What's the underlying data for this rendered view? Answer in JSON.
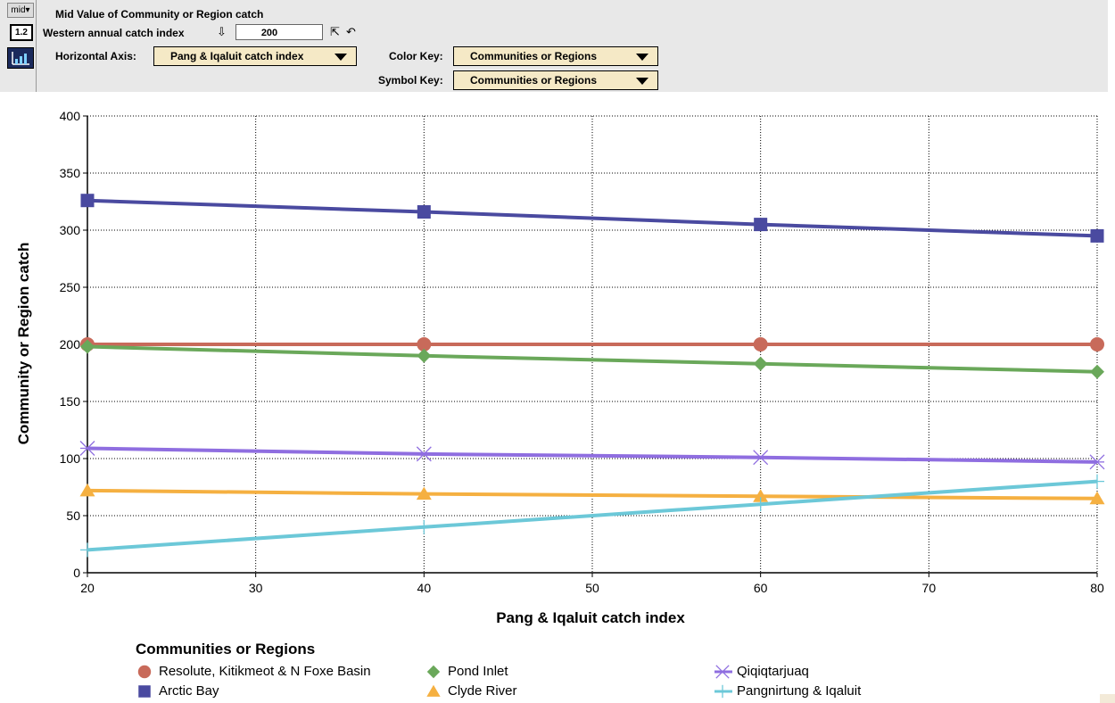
{
  "toolbar": {
    "mid_button": "mid",
    "number_button": "1.2",
    "title": "Mid Value of Community or Region catch",
    "input_label": "Western annual catch index",
    "input_value": "200",
    "horizontal_axis_label": "Horizontal Axis:",
    "horizontal_axis_value": "Pang & Iqaluit catch index",
    "color_key_label": "Color Key:",
    "color_key_value": "Communities or Regions",
    "symbol_key_label": "Symbol Key:",
    "symbol_key_value": "Communities or Regions"
  },
  "chart_data": {
    "type": "line",
    "xlabel": "Pang & Iqaluit catch index",
    "ylabel": "Community or Region catch",
    "xlim": [
      20,
      80
    ],
    "ylim": [
      0,
      400
    ],
    "x_ticks": [
      20,
      30,
      40,
      50,
      60,
      70,
      80
    ],
    "y_ticks": [
      0,
      50,
      100,
      150,
      200,
      250,
      300,
      350,
      400
    ],
    "grid": true,
    "legend_title": "Communities or Regions",
    "legend_position": "bottom",
    "series": [
      {
        "name": "Resolute, Kitikmeot & N Foxe Basin",
        "color": "#c86a5a",
        "marker": "circle",
        "x": [
          20,
          40,
          60,
          80
        ],
        "values": [
          200,
          200,
          200,
          200
        ]
      },
      {
        "name": "Arctic Bay",
        "color": "#4a4aa0",
        "marker": "square",
        "x": [
          20,
          40,
          60,
          80
        ],
        "values": [
          326,
          316,
          305,
          295
        ]
      },
      {
        "name": "Pond Inlet",
        "color": "#6aa85a",
        "marker": "diamond",
        "x": [
          20,
          40,
          60,
          80
        ],
        "values": [
          198,
          190,
          183,
          176
        ]
      },
      {
        "name": "Clyde River",
        "color": "#f5b041",
        "marker": "triangle",
        "x": [
          20,
          40,
          60,
          80
        ],
        "values": [
          72,
          69,
          67,
          65
        ]
      },
      {
        "name": "Qiqiqtarjuaq",
        "color": "#8f6ee0",
        "marker": "asterisk",
        "x": [
          20,
          40,
          60,
          80
        ],
        "values": [
          109,
          104,
          101,
          97
        ]
      },
      {
        "name": "Pangnirtung & Iqaluit",
        "color": "#6cc8d8",
        "marker": "plus",
        "x": [
          20,
          40,
          60,
          80
        ],
        "values": [
          20,
          40,
          60,
          80
        ]
      }
    ]
  }
}
